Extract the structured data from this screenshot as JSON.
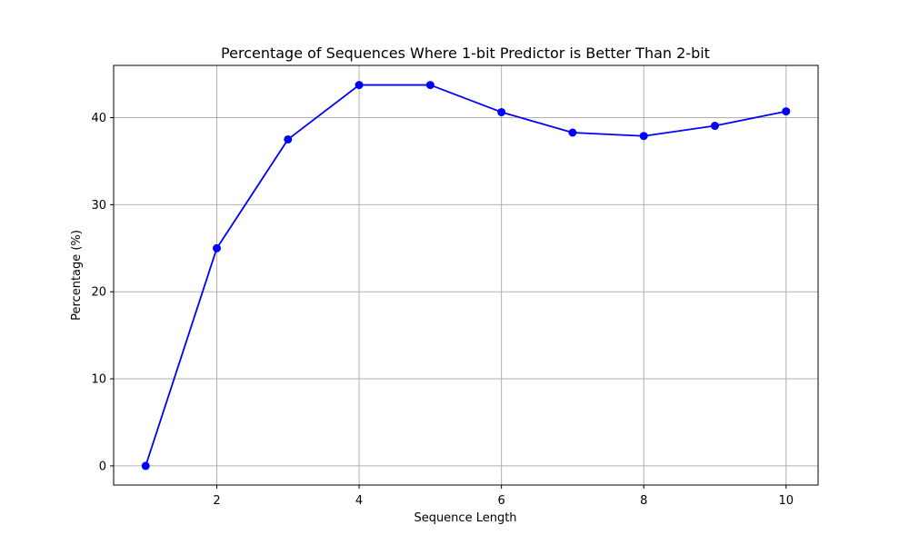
{
  "chart_data": {
    "type": "line",
    "title": "Percentage of Sequences Where 1-bit Predictor is Better Than 2-bit",
    "xlabel": "Sequence Length",
    "ylabel": "Percentage (%)",
    "x": [
      1,
      2,
      3,
      4,
      5,
      6,
      7,
      8,
      9,
      10
    ],
    "series": [
      {
        "values": [
          0,
          25.0,
          37.5,
          43.75,
          43.75,
          40.63,
          38.28,
          37.89,
          39.06,
          40.72
        ],
        "color": "#0000ff",
        "marker": "circle"
      }
    ],
    "xlim": [
      0.55,
      10.45
    ],
    "ylim": [
      -2.2,
      46.0
    ],
    "xticks": [
      2,
      4,
      6,
      8,
      10
    ],
    "yticks": [
      0,
      10,
      20,
      30,
      40
    ],
    "grid": true,
    "legend": false
  }
}
